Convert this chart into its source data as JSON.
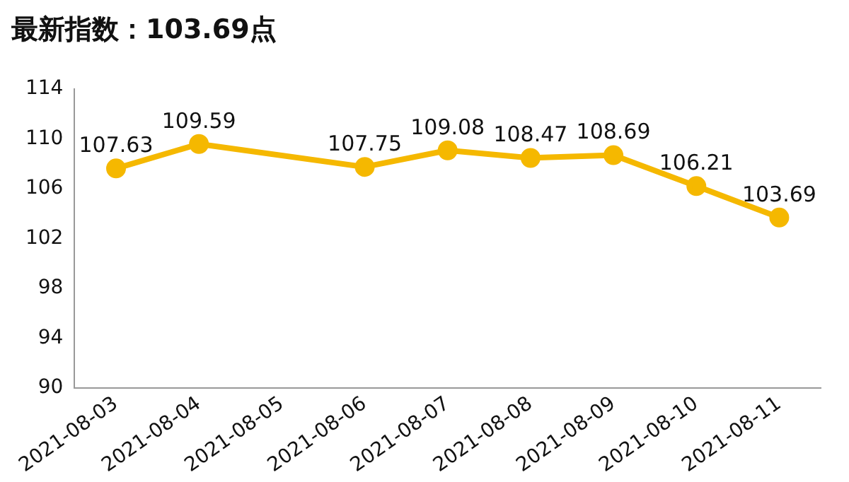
{
  "chart_data": {
    "type": "line",
    "title": "最新指数：103.69点",
    "categories": [
      "2021-08-03",
      "2021-08-04",
      "2021-08-05",
      "2021-08-06",
      "2021-08-07",
      "2021-08-08",
      "2021-08-09",
      "2021-08-10",
      "2021-08-11"
    ],
    "series": [
      {
        "color": "#f5b800",
        "values": [
          107.63,
          109.59,
          null,
          107.75,
          109.08,
          108.47,
          108.69,
          106.21,
          103.69
        ]
      }
    ],
    "ylim": [
      90,
      114
    ],
    "yticks": [
      90,
      94,
      98,
      102,
      106,
      110,
      114
    ],
    "grid": false,
    "legend": false,
    "marker": "circle",
    "line_style": "solid",
    "data_labels": true
  }
}
